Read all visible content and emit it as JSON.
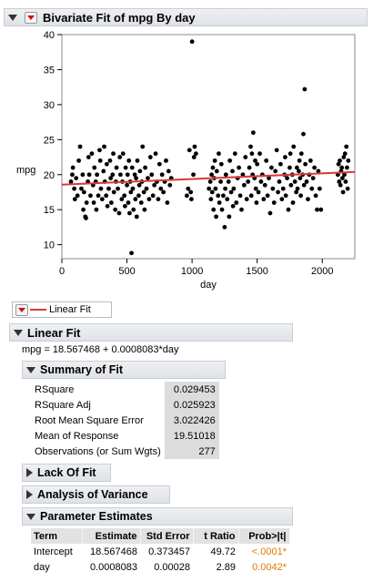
{
  "report": {
    "title": "Bivariate Fit of mpg By day",
    "legend_label": "Linear Fit",
    "fit_title": "Linear Fit",
    "equation": "mpg = 18.567468 + 0.0008083*day",
    "summary": {
      "title": "Summary of Fit",
      "rows": [
        {
          "label": "RSquare",
          "value": "0.029453"
        },
        {
          "label": "RSquare Adj",
          "value": "0.025923"
        },
        {
          "label": "Root Mean Square Error",
          "value": "3.022426"
        },
        {
          "label": "Mean of Response",
          "value": "19.51018"
        },
        {
          "label": "Observations (or Sum Wgts)",
          "value": "277"
        }
      ]
    },
    "lack_of_fit_title": "Lack Of Fit",
    "anova_title": "Analysis of Variance",
    "parameter_estimates": {
      "title": "Parameter Estimates",
      "headers": [
        "Term",
        "Estimate",
        "Std Error",
        "t Ratio",
        "Prob>|t|"
      ],
      "rows": [
        [
          "Intercept",
          "18.567468",
          "0.373457",
          "49.72",
          "<.0001*"
        ],
        [
          "day",
          "0.0008083",
          "0.00028",
          "2.89",
          "0.0042*"
        ]
      ]
    }
  },
  "colors": {
    "fit_line": "#d93a3a",
    "points": "#000000",
    "significant": "#e07b00"
  },
  "chart_data": {
    "type": "scatter",
    "xlabel": "day",
    "ylabel": "mpg",
    "xlim": [
      0,
      2250
    ],
    "ylim": [
      8,
      40
    ],
    "xticks": [
      0,
      500,
      1000,
      1500,
      2000
    ],
    "yticks": [
      10,
      15,
      20,
      25,
      30,
      35,
      40
    ],
    "grid": false,
    "fit_line": {
      "intercept": 18.567468,
      "slope": 0.0008083
    },
    "points": [
      [
        70,
        19
      ],
      [
        80,
        20
      ],
      [
        85,
        21
      ],
      [
        95,
        18
      ],
      [
        100,
        16.5
      ],
      [
        110,
        19.5
      ],
      [
        120,
        17
      ],
      [
        130,
        22
      ],
      [
        140,
        24
      ],
      [
        150,
        18
      ],
      [
        160,
        20
      ],
      [
        165,
        15
      ],
      [
        170,
        17.5
      ],
      [
        180,
        14
      ],
      [
        185,
        13.8
      ],
      [
        190,
        16
      ],
      [
        200,
        19
      ],
      [
        205,
        22.5
      ],
      [
        210,
        20
      ],
      [
        220,
        17
      ],
      [
        230,
        23
      ],
      [
        240,
        18.5
      ],
      [
        245,
        16
      ],
      [
        250,
        21
      ],
      [
        260,
        19
      ],
      [
        265,
        15
      ],
      [
        270,
        20
      ],
      [
        280,
        17
      ],
      [
        290,
        23.5
      ],
      [
        295,
        22
      ],
      [
        300,
        18
      ],
      [
        310,
        16.5
      ],
      [
        320,
        20.5
      ],
      [
        325,
        24
      ],
      [
        330,
        19
      ],
      [
        340,
        17
      ],
      [
        345,
        21.5
      ],
      [
        350,
        15.5
      ],
      [
        360,
        18
      ],
      [
        370,
        22
      ],
      [
        375,
        19.5
      ],
      [
        380,
        16
      ],
      [
        390,
        20
      ],
      [
        395,
        23
      ],
      [
        400,
        17.5
      ],
      [
        410,
        15
      ],
      [
        415,
        19
      ],
      [
        420,
        21
      ],
      [
        430,
        18
      ],
      [
        440,
        14.5
      ],
      [
        445,
        22.5
      ],
      [
        450,
        20
      ],
      [
        460,
        16.5
      ],
      [
        465,
        19
      ],
      [
        470,
        23
      ],
      [
        480,
        17
      ],
      [
        485,
        15.5
      ],
      [
        490,
        21
      ],
      [
        500,
        18.5
      ],
      [
        505,
        20
      ],
      [
        510,
        16
      ],
      [
        515,
        22
      ],
      [
        520,
        14.5
      ],
      [
        525,
        19
      ],
      [
        530,
        17.5
      ],
      [
        535,
        8.8
      ],
      [
        540,
        21
      ],
      [
        545,
        18
      ],
      [
        550,
        15
      ],
      [
        560,
        20
      ],
      [
        565,
        16.5
      ],
      [
        570,
        19.5
      ],
      [
        575,
        14
      ],
      [
        580,
        22
      ],
      [
        590,
        17
      ],
      [
        595,
        18.5
      ],
      [
        600,
        20.5
      ],
      [
        610,
        16
      ],
      [
        615,
        19
      ],
      [
        620,
        24
      ],
      [
        630,
        17.5
      ],
      [
        635,
        15
      ],
      [
        640,
        21
      ],
      [
        650,
        18
      ],
      [
        660,
        19.5
      ],
      [
        670,
        16.5
      ],
      [
        680,
        22.5
      ],
      [
        690,
        20
      ],
      [
        700,
        17
      ],
      [
        710,
        18.5
      ],
      [
        720,
        23
      ],
      [
        730,
        19
      ],
      [
        740,
        16.5
      ],
      [
        750,
        21.5
      ],
      [
        760,
        18
      ],
      [
        770,
        20
      ],
      [
        780,
        17.5
      ],
      [
        790,
        19
      ],
      [
        800,
        22
      ],
      [
        810,
        16
      ],
      [
        820,
        20.5
      ],
      [
        830,
        18.5
      ],
      [
        840,
        19.5
      ],
      [
        960,
        17
      ],
      [
        970,
        18
      ],
      [
        980,
        23.5
      ],
      [
        990,
        17.5
      ],
      [
        995,
        16.5
      ],
      [
        1000,
        39
      ],
      [
        1010,
        20
      ],
      [
        1015,
        22.5
      ],
      [
        1020,
        24
      ],
      [
        1030,
        23
      ],
      [
        1130,
        18
      ],
      [
        1140,
        19
      ],
      [
        1145,
        16.5
      ],
      [
        1150,
        20
      ],
      [
        1155,
        17.5
      ],
      [
        1160,
        21
      ],
      [
        1165,
        15
      ],
      [
        1170,
        19.5
      ],
      [
        1175,
        22
      ],
      [
        1180,
        18
      ],
      [
        1185,
        14
      ],
      [
        1190,
        20.5
      ],
      [
        1200,
        17
      ],
      [
        1205,
        23
      ],
      [
        1210,
        16
      ],
      [
        1220,
        19
      ],
      [
        1225,
        21.5
      ],
      [
        1230,
        15
      ],
      [
        1240,
        17
      ],
      [
        1250,
        12.5
      ],
      [
        1255,
        18
      ],
      [
        1260,
        20
      ],
      [
        1270,
        16.5
      ],
      [
        1280,
        19
      ],
      [
        1285,
        14
      ],
      [
        1290,
        22
      ],
      [
        1300,
        17.5
      ],
      [
        1310,
        20.5
      ],
      [
        1315,
        15.5
      ],
      [
        1320,
        18
      ],
      [
        1330,
        23
      ],
      [
        1340,
        16
      ],
      [
        1350,
        19.5
      ],
      [
        1360,
        21
      ],
      [
        1370,
        17
      ],
      [
        1380,
        15
      ],
      [
        1390,
        20
      ],
      [
        1400,
        18.5
      ],
      [
        1410,
        22.5
      ],
      [
        1420,
        16.5
      ],
      [
        1430,
        19
      ],
      [
        1440,
        21
      ],
      [
        1450,
        24
      ],
      [
        1455,
        17
      ],
      [
        1460,
        23
      ],
      [
        1465,
        20
      ],
      [
        1470,
        26
      ],
      [
        1480,
        19.5
      ],
      [
        1485,
        22
      ],
      [
        1490,
        18
      ],
      [
        1495,
        16
      ],
      [
        1500,
        21.5
      ],
      [
        1510,
        17.5
      ],
      [
        1520,
        23
      ],
      [
        1530,
        19
      ],
      [
        1540,
        20
      ],
      [
        1550,
        16.5
      ],
      [
        1560,
        18.5
      ],
      [
        1570,
        22
      ],
      [
        1580,
        17
      ],
      [
        1590,
        19.5
      ],
      [
        1600,
        14.5
      ],
      [
        1610,
        21
      ],
      [
        1620,
        18
      ],
      [
        1630,
        16
      ],
      [
        1640,
        20.5
      ],
      [
        1650,
        23.5
      ],
      [
        1660,
        17.5
      ],
      [
        1670,
        19
      ],
      [
        1680,
        21.5
      ],
      [
        1690,
        16.5
      ],
      [
        1700,
        18
      ],
      [
        1710,
        20
      ],
      [
        1715,
        22.5
      ],
      [
        1720,
        17
      ],
      [
        1730,
        19.5
      ],
      [
        1740,
        15
      ],
      [
        1750,
        21
      ],
      [
        1755,
        23
      ],
      [
        1760,
        18.5
      ],
      [
        1770,
        20
      ],
      [
        1775,
        16
      ],
      [
        1780,
        24
      ],
      [
        1790,
        19
      ],
      [
        1800,
        17.5
      ],
      [
        1805,
        21
      ],
      [
        1810,
        18
      ],
      [
        1820,
        20.5
      ],
      [
        1825,
        22
      ],
      [
        1830,
        19.5
      ],
      [
        1835,
        17
      ],
      [
        1840,
        23
      ],
      [
        1850,
        20
      ],
      [
        1855,
        25.8
      ],
      [
        1860,
        18.5
      ],
      [
        1865,
        32.2
      ],
      [
        1870,
        21.5
      ],
      [
        1880,
        19
      ],
      [
        1890,
        16.5
      ],
      [
        1900,
        20
      ],
      [
        1910,
        22
      ],
      [
        1920,
        18
      ],
      [
        1930,
        19.5
      ],
      [
        1940,
        21
      ],
      [
        1950,
        17
      ],
      [
        1960,
        15
      ],
      [
        1970,
        20.5
      ],
      [
        1980,
        18
      ],
      [
        1990,
        15
      ],
      [
        2120,
        20
      ],
      [
        2125,
        21.5
      ],
      [
        2130,
        19
      ],
      [
        2135,
        22
      ],
      [
        2140,
        18.5
      ],
      [
        2145,
        20.5
      ],
      [
        2150,
        21
      ],
      [
        2155,
        19.5
      ],
      [
        2160,
        17.5
      ],
      [
        2165,
        22.5
      ],
      [
        2170,
        20
      ],
      [
        2175,
        23
      ],
      [
        2180,
        19
      ],
      [
        2185,
        24
      ],
      [
        2190,
        21
      ],
      [
        2195,
        18
      ],
      [
        2200,
        22
      ]
    ]
  }
}
